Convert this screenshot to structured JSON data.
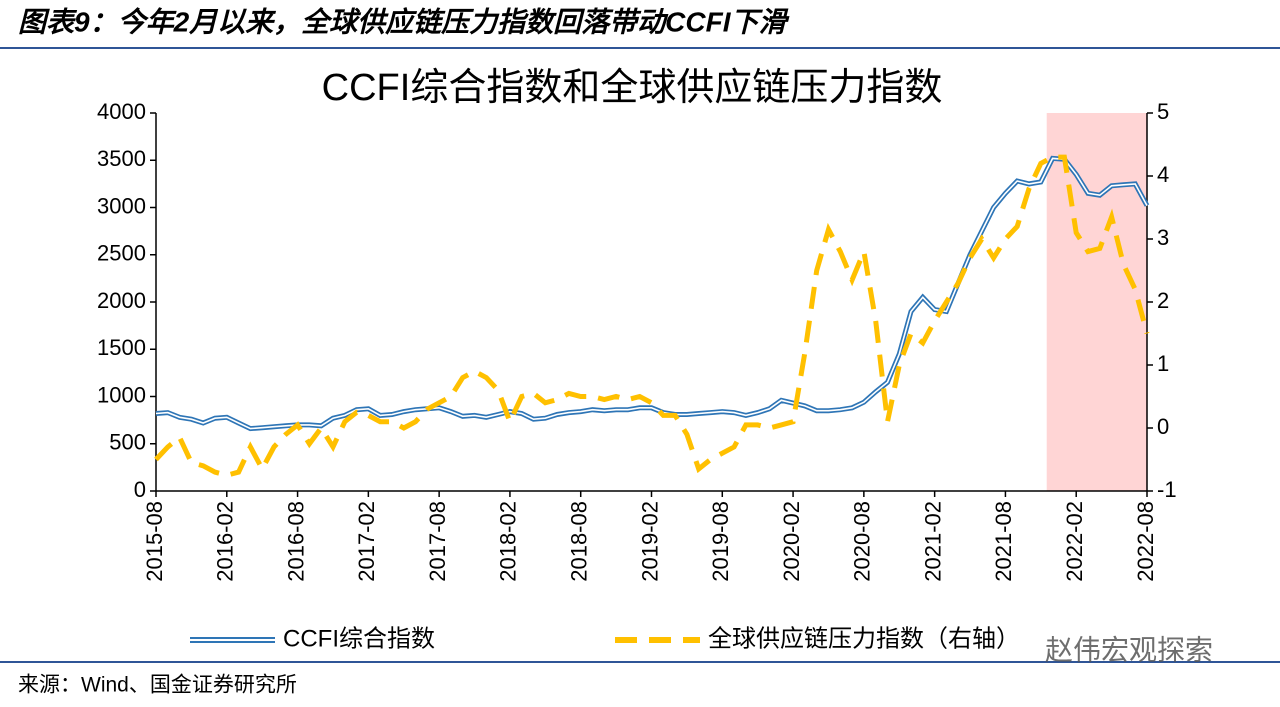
{
  "header": {
    "caption": "图表9：今年2月以来，全球供应链压力指数回落带动CCFI下滑"
  },
  "source": "来源：Wind、国金证券研究所",
  "watermark": "赵伟宏观探索",
  "chart_data": {
    "type": "line",
    "title": "CCFI综合指数和全球供应链压力指数",
    "categories": [
      "2015-08",
      null,
      null,
      null,
      null,
      null,
      "2016-02",
      null,
      null,
      null,
      null,
      null,
      "2016-08",
      null,
      null,
      null,
      null,
      null,
      "2017-02",
      null,
      null,
      null,
      null,
      null,
      "2017-08",
      null,
      null,
      null,
      null,
      null,
      "2018-02",
      null,
      null,
      null,
      null,
      null,
      "2018-08",
      null,
      null,
      null,
      null,
      null,
      "2019-02",
      null,
      null,
      null,
      null,
      null,
      "2019-08",
      null,
      null,
      null,
      null,
      null,
      "2020-02",
      null,
      null,
      null,
      null,
      null,
      "2020-08",
      null,
      null,
      null,
      null,
      null,
      "2021-02",
      null,
      null,
      null,
      null,
      null,
      "2021-08",
      null,
      null,
      null,
      null,
      null,
      "2022-02",
      null,
      null,
      null,
      null,
      null,
      "2022-08"
    ],
    "series": [
      {
        "name": "CCFI综合指数",
        "color": "#2e75b6",
        "axis": "y",
        "values": [
          820,
          830,
          780,
          760,
          720,
          770,
          780,
          720,
          660,
          670,
          680,
          690,
          700,
          700,
          690,
          770,
          800,
          860,
          870,
          800,
          810,
          840,
          860,
          870,
          880,
          840,
          790,
          800,
          780,
          810,
          840,
          820,
          760,
          770,
          810,
          830,
          840,
          860,
          850,
          860,
          860,
          880,
          880,
          830,
          810,
          810,
          820,
          830,
          840,
          830,
          800,
          830,
          870,
          960,
          930,
          900,
          850,
          850,
          860,
          880,
          940,
          1050,
          1150,
          1450,
          1900,
          2050,
          1920,
          1900,
          2200,
          2500,
          2750,
          3000,
          3150,
          3280,
          3250,
          3270,
          3520,
          3510,
          3350,
          3150,
          3130,
          3230,
          3240,
          3250,
          3020
        ]
      },
      {
        "name": "全球供应链压力指数（右轴）",
        "color": "#ffc000",
        "axis": "y2",
        "values": [
          -0.5,
          -0.3,
          -0.15,
          -0.55,
          -0.6,
          -0.7,
          -0.75,
          -0.7,
          -0.3,
          -0.65,
          -0.3,
          -0.1,
          0.05,
          -0.25,
          0,
          -0.3,
          0.1,
          0.25,
          0.2,
          0.1,
          0.1,
          0,
          0.1,
          0.3,
          0.4,
          0.5,
          0.8,
          0.9,
          0.8,
          0.6,
          0.1,
          0.5,
          0.55,
          0.4,
          0.45,
          0.55,
          0.5,
          0.5,
          0.45,
          0.5,
          0.45,
          0.5,
          0.4,
          0.2,
          0.2,
          -0.1,
          -0.65,
          -0.5,
          -0.4,
          -0.3,
          0.05,
          0.05,
          0,
          0.05,
          0.1,
          1.2,
          2.5,
          3.15,
          2.8,
          2.35,
          2.8,
          1.7,
          0.1,
          1,
          1.5,
          1.35,
          1.7,
          2,
          2.3,
          2.7,
          3,
          2.7,
          3,
          3.2,
          3.8,
          4.2,
          4.3,
          4.3,
          3.1,
          2.8,
          2.85,
          3.35,
          2.6,
          2.2,
          1.5
        ]
      }
    ],
    "ylim": [
      0,
      4000
    ],
    "yticks": [
      0,
      500,
      1000,
      1500,
      2000,
      2500,
      3000,
      3500,
      4000
    ],
    "y2lim": [
      -1,
      5
    ],
    "y2ticks": [
      -1,
      0,
      1,
      2,
      3,
      4,
      5
    ],
    "highlight": {
      "x": [
        75.5,
        84
      ],
      "color": "#ffd5d5"
    },
    "legend": "bottom"
  }
}
